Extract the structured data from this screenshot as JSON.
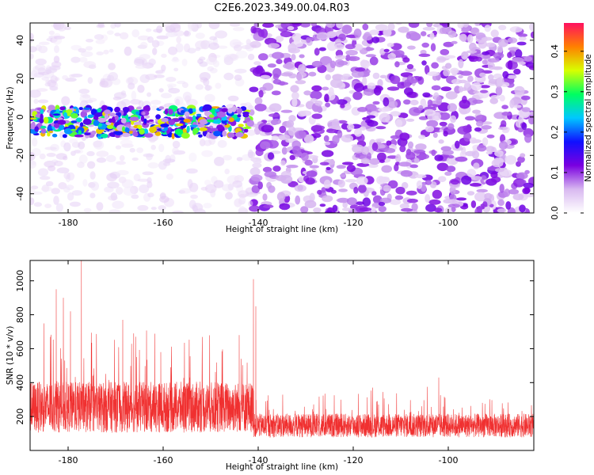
{
  "title": "C2E6.2023.349.00.04.R03",
  "chart_data": [
    {
      "type": "heatmap",
      "title": "C2E6.2023.349.00.04.R03",
      "xlabel": "Height of straight line (km)",
      "ylabel": "Frequency (Hz)",
      "xlim": [
        -188,
        -82
      ],
      "ylim": [
        -50,
        49
      ],
      "xticks": [
        -180,
        -160,
        -140,
        -120,
        -100
      ],
      "yticks": [
        -40,
        -20,
        0,
        20,
        40
      ],
      "colorbar": {
        "label": "Normalized spectral amplitude",
        "range": [
          0,
          0.47
        ],
        "ticks": [
          0.0,
          0.1,
          0.2,
          0.3,
          0.4
        ],
        "colors": [
          "#ffffff",
          "#d8b8f0",
          "#7a00e0",
          "#1010ff",
          "#00c8ff",
          "#00ff60",
          "#d8ff00",
          "#ff8000",
          "#ff1060"
        ]
      },
      "description_of_features": {
        "strong_band_frequency_range_hz": [
          -10,
          5
        ],
        "strong_band_height_range_km": [
          -188,
          -141
        ],
        "strong_band_peak_amplitude": 0.4,
        "regime_change_height_km": -141,
        "background_amplitude_low_region": 0.03,
        "background_amplitude_high_region": 0.07
      }
    },
    {
      "type": "line",
      "xlabel": "Height of straight line (km)",
      "ylabel": "SNR (10 * v/v)",
      "xlim": [
        -188,
        -82
      ],
      "ylim": [
        0,
        1120
      ],
      "xticks": [
        -180,
        -160,
        -140,
        -120,
        -100
      ],
      "yticks": [
        200,
        400,
        600,
        800,
        1000
      ],
      "color": "#f03030",
      "segments": [
        {
          "x_range": [
            -188,
            -141
          ],
          "baseline": 240,
          "spread": 150
        },
        {
          "x_range": [
            -141,
            -82
          ],
          "baseline": 140,
          "spread": 70
        }
      ],
      "peaks": [
        {
          "x": -182.5,
          "y": 950
        },
        {
          "x": -181.0,
          "y": 900
        },
        {
          "x": -179.5,
          "y": 820
        },
        {
          "x": -177.2,
          "y": 1120
        },
        {
          "x": -168.5,
          "y": 770
        },
        {
          "x": -166.2,
          "y": 690
        },
        {
          "x": -165.8,
          "y": 670
        },
        {
          "x": -160.5,
          "y": 580
        },
        {
          "x": -144.0,
          "y": 680
        },
        {
          "x": -141.0,
          "y": 1010
        },
        {
          "x": -140.5,
          "y": 850
        },
        {
          "x": -102.0,
          "y": 430
        }
      ]
    }
  ]
}
